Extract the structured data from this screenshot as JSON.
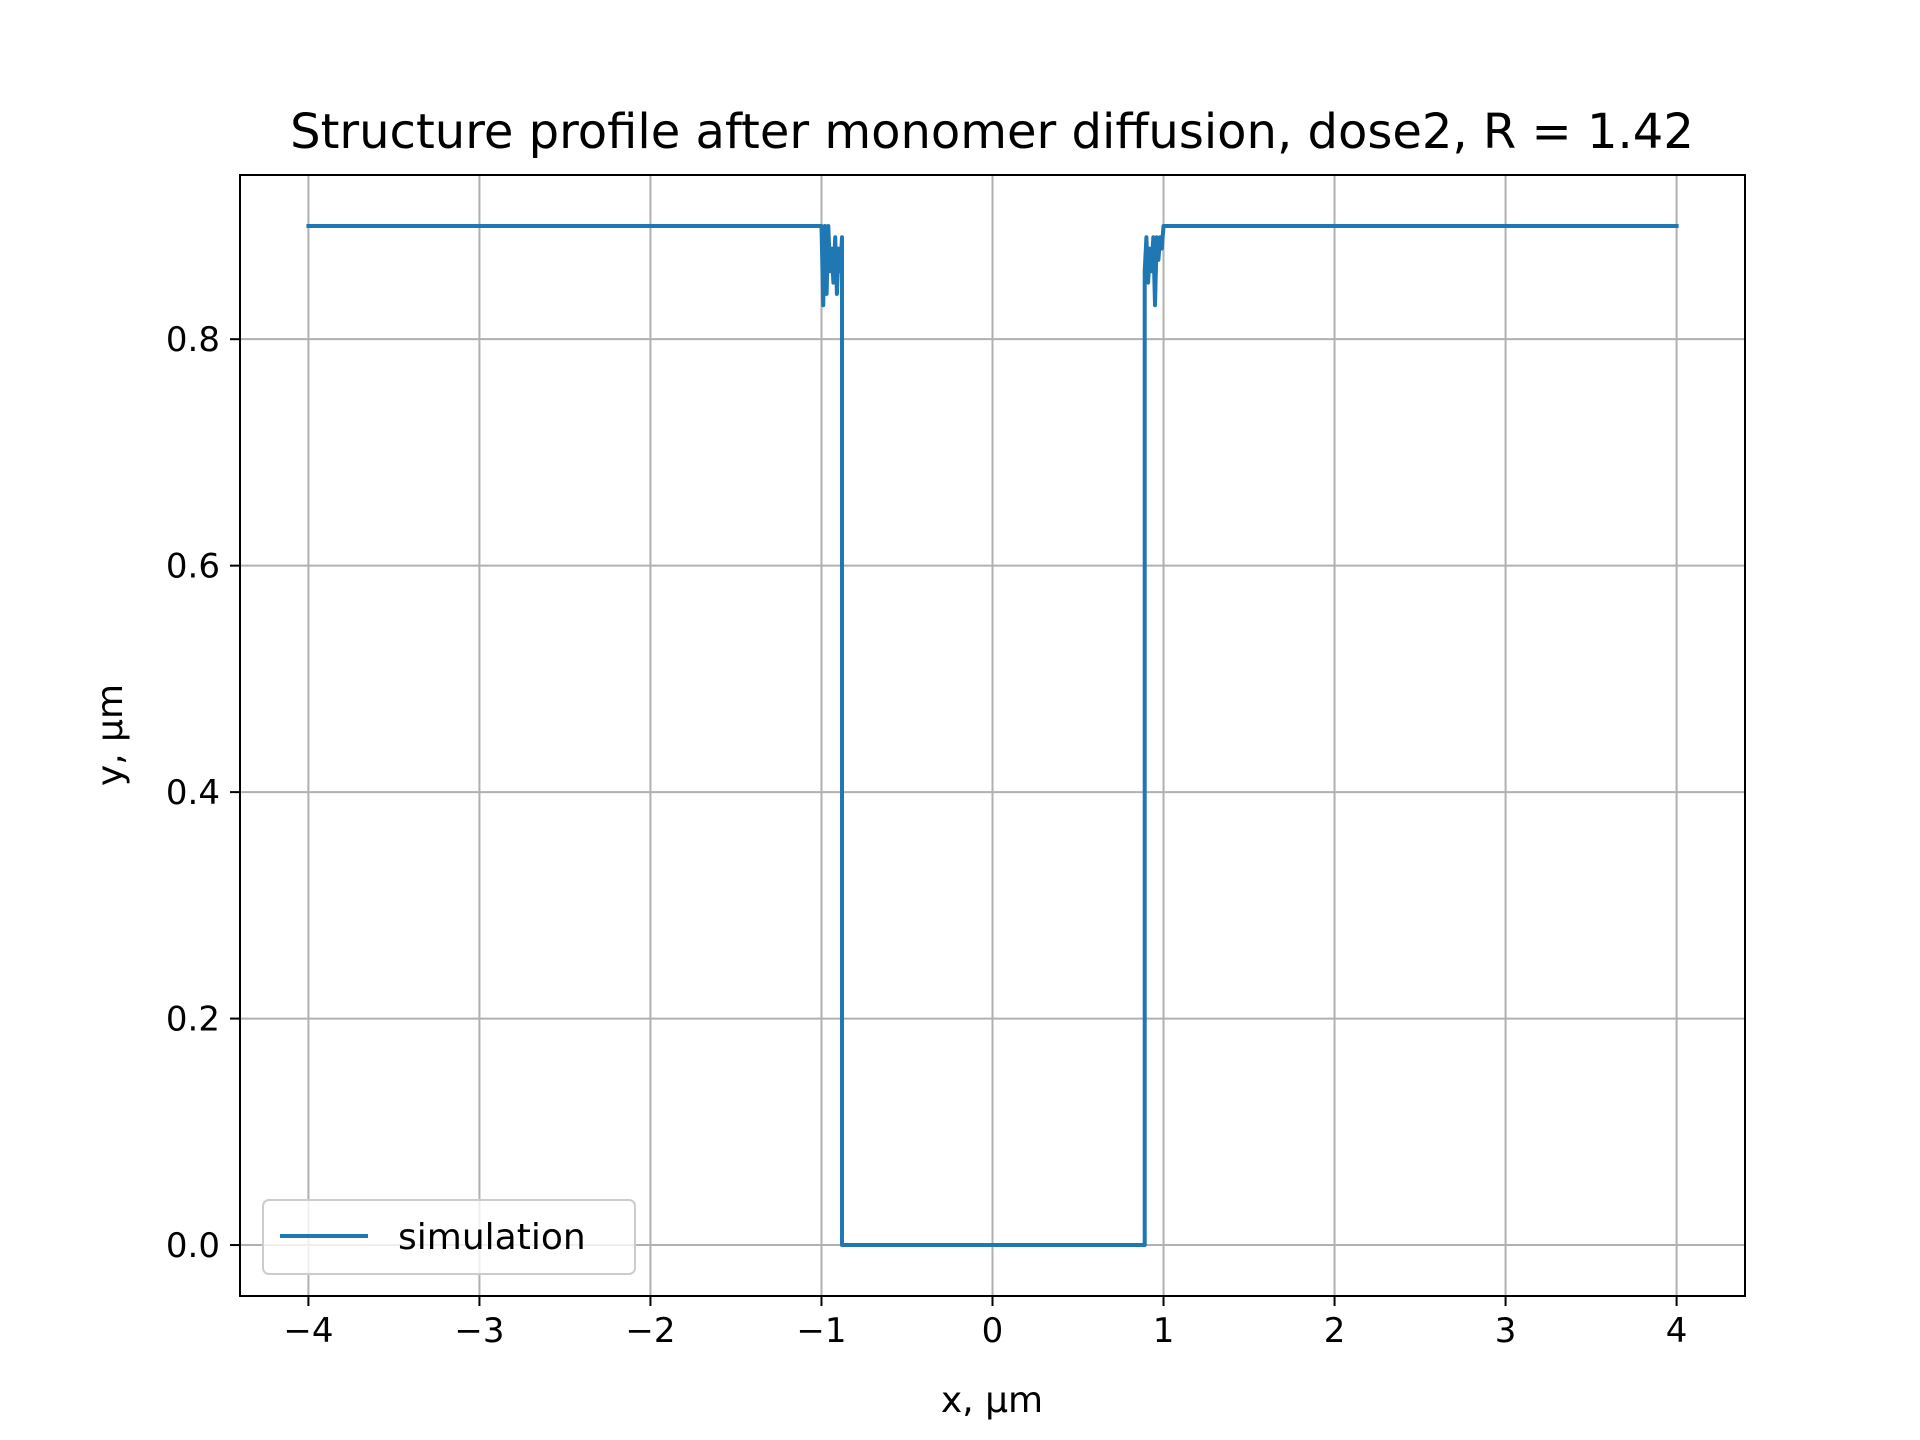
{
  "chart_data": {
    "type": "line",
    "title": "Structure profile after monomer diffusion, dose2, R = 1.42",
    "xlabel": "x, μm",
    "ylabel": "y, μm",
    "xlim": [
      -4.4,
      4.4
    ],
    "ylim": [
      -0.045,
      0.945
    ],
    "grid": true,
    "legend_position": "lower-left",
    "xticks": [
      -4,
      -3,
      -2,
      -1,
      0,
      1,
      2,
      3,
      4
    ],
    "xtick_labels": [
      "−4",
      "−3",
      "−2",
      "−1",
      "0",
      "1",
      "2",
      "3",
      "4"
    ],
    "yticks": [
      0.0,
      0.2,
      0.4,
      0.6,
      0.8
    ],
    "ytick_labels": [
      "0.0",
      "0.2",
      "0.4",
      "0.6",
      "0.8"
    ],
    "series": [
      {
        "name": "simulation",
        "color": "#1f77b4",
        "x": [
          -4.0,
          -1.0,
          -0.99,
          -0.98,
          -0.97,
          -0.96,
          -0.95,
          -0.94,
          -0.93,
          -0.92,
          -0.91,
          -0.9,
          -0.89,
          -0.88,
          -0.88,
          0.89,
          0.89,
          0.9,
          0.91,
          0.92,
          0.93,
          0.94,
          0.95,
          0.96,
          0.97,
          0.98,
          0.99,
          1.0,
          4.0
        ],
        "y": [
          0.9,
          0.9,
          0.83,
          0.9,
          0.84,
          0.9,
          0.86,
          0.88,
          0.85,
          0.89,
          0.84,
          0.88,
          0.86,
          0.89,
          0.0,
          0.0,
          0.86,
          0.89,
          0.85,
          0.88,
          0.86,
          0.89,
          0.83,
          0.89,
          0.87,
          0.89,
          0.88,
          0.9,
          0.9
        ]
      }
    ]
  }
}
